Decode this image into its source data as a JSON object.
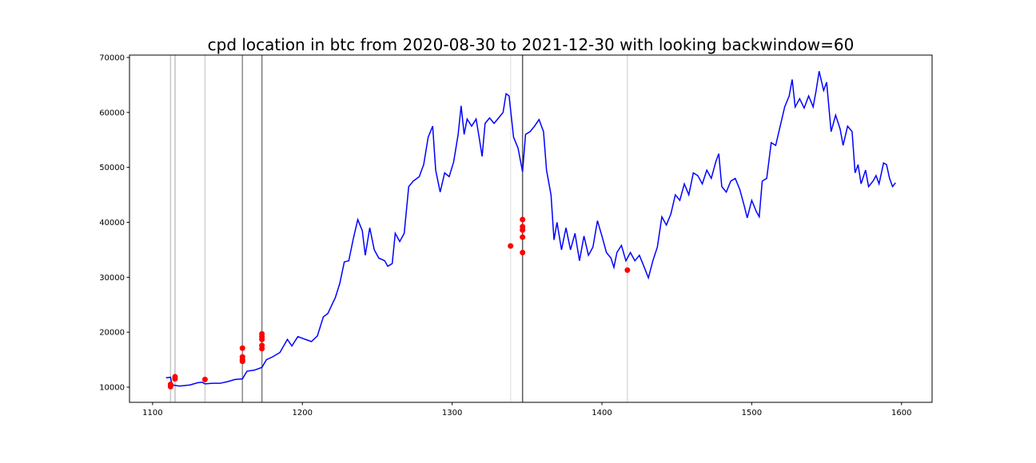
{
  "chart_data": {
    "type": "line",
    "title": "cpd location in btc from 2020-08-30 to 2021-12-30 with looking backwindow=60",
    "xlim": [
      1084.6,
      1620.4
    ],
    "ylim": [
      7240,
      70436
    ],
    "xticks": [
      1100,
      1200,
      1300,
      1400,
      1500,
      1600
    ],
    "yticks": [
      10000,
      20000,
      30000,
      40000,
      50000,
      60000,
      70000
    ],
    "line": {
      "color": "#0000ff",
      "x": [
        1109,
        1112,
        1113,
        1118,
        1125,
        1130,
        1133,
        1135,
        1140,
        1145,
        1150,
        1155,
        1160,
        1163,
        1168,
        1173,
        1176,
        1180,
        1185,
        1190,
        1193,
        1197,
        1202,
        1206,
        1210,
        1214,
        1217,
        1222,
        1225,
        1228,
        1231,
        1234,
        1237,
        1240,
        1242,
        1245,
        1248,
        1251,
        1255,
        1257,
        1260,
        1262,
        1265,
        1268,
        1271,
        1274,
        1278,
        1281,
        1284,
        1287,
        1289,
        1292,
        1295,
        1298,
        1301,
        1304,
        1306,
        1308,
        1310,
        1313,
        1316,
        1318,
        1320,
        1322,
        1325,
        1328,
        1331,
        1334,
        1336,
        1338,
        1341,
        1344,
        1347,
        1349,
        1352,
        1355,
        1358,
        1361,
        1363,
        1366,
        1368,
        1370,
        1373,
        1376,
        1379,
        1382,
        1385,
        1388,
        1391,
        1394,
        1397,
        1400,
        1403,
        1406,
        1408,
        1410,
        1413,
        1416,
        1419,
        1422,
        1425,
        1428,
        1431,
        1434,
        1437,
        1440,
        1443,
        1446,
        1449,
        1452,
        1455,
        1458,
        1461,
        1464,
        1467,
        1470,
        1473,
        1476,
        1478,
        1480,
        1483,
        1486,
        1489,
        1492,
        1495,
        1497,
        1500,
        1503,
        1505,
        1507,
        1510,
        1513,
        1516,
        1519,
        1522,
        1525,
        1527,
        1529,
        1532,
        1535,
        1538,
        1541,
        1543,
        1545,
        1548,
        1550,
        1553,
        1556,
        1559,
        1561,
        1564,
        1567,
        1569,
        1571,
        1573,
        1576,
        1578,
        1581,
        1583,
        1585,
        1588,
        1590,
        1592,
        1594,
        1596
      ],
      "y": [
        11700,
        11800,
        10400,
        10200,
        10400,
        10800,
        10900,
        10600,
        10700,
        10700,
        11000,
        11400,
        11500,
        12900,
        13100,
        13600,
        15000,
        15500,
        16300,
        18700,
        17500,
        19200,
        18700,
        18300,
        19300,
        22800,
        23400,
        26300,
        28900,
        32800,
        33000,
        37000,
        40500,
        38500,
        34000,
        39000,
        35000,
        33500,
        33000,
        32000,
        32500,
        38000,
        36500,
        38000,
        46500,
        47500,
        48300,
        50500,
        55500,
        57500,
        49500,
        45500,
        49000,
        48300,
        51000,
        56000,
        61200,
        56000,
        58800,
        57500,
        58800,
        55500,
        52000,
        58000,
        59000,
        58000,
        59000,
        60000,
        63400,
        63000,
        55500,
        53500,
        49200,
        56000,
        56500,
        57500,
        58700,
        56500,
        49500,
        45000,
        36800,
        40000,
        35000,
        39000,
        35000,
        38000,
        33000,
        37500,
        34000,
        35500,
        40300,
        37500,
        34500,
        33500,
        31800,
        34500,
        35800,
        33000,
        34500,
        33000,
        34000,
        32000,
        29900,
        33000,
        35500,
        41000,
        39500,
        41500,
        45000,
        44000,
        47000,
        45000,
        49000,
        48500,
        47000,
        49500,
        48000,
        51000,
        52500,
        46500,
        45500,
        47500,
        48000,
        46000,
        43000,
        40800,
        44000,
        42000,
        41000,
        47500,
        48000,
        54500,
        54000,
        57500,
        61000,
        63000,
        66000,
        61000,
        62500,
        60800,
        63000,
        61000,
        64000,
        67500,
        64000,
        65500,
        56500,
        59500,
        57000,
        54000,
        57500,
        56500,
        49000,
        50500,
        47000,
        49500,
        46500,
        47500,
        48500,
        47000,
        50800,
        50500,
        48000,
        46500,
        47200
      ]
    },
    "points": {
      "color": "#ff0000",
      "x": [
        1112,
        1112,
        1115,
        1115,
        1135,
        1160,
        1160,
        1160,
        1160,
        1173,
        1173,
        1173,
        1173,
        1173,
        1339,
        1347,
        1347,
        1347,
        1347,
        1347,
        1417
      ],
      "y": [
        10100,
        10500,
        11500,
        11900,
        11400,
        17100,
        15500,
        15000,
        14700,
        19700,
        19200,
        18700,
        17600,
        17000,
        35700,
        40500,
        39200,
        38600,
        37300,
        34500,
        31300
      ]
    },
    "vlines": [
      {
        "x": 1112,
        "color": "#c8c8c8"
      },
      {
        "x": 1115,
        "color": "#c0c0c0"
      },
      {
        "x": 1135,
        "color": "#d0d0d0"
      },
      {
        "x": 1160,
        "color": "#8a8a8a"
      },
      {
        "x": 1173,
        "color": "#7a7a7a"
      },
      {
        "x": 1339,
        "color": "#e6e6e6"
      },
      {
        "x": 1347,
        "color": "#5a5a5a"
      },
      {
        "x": 1417,
        "color": "#dcdcdc"
      }
    ]
  }
}
